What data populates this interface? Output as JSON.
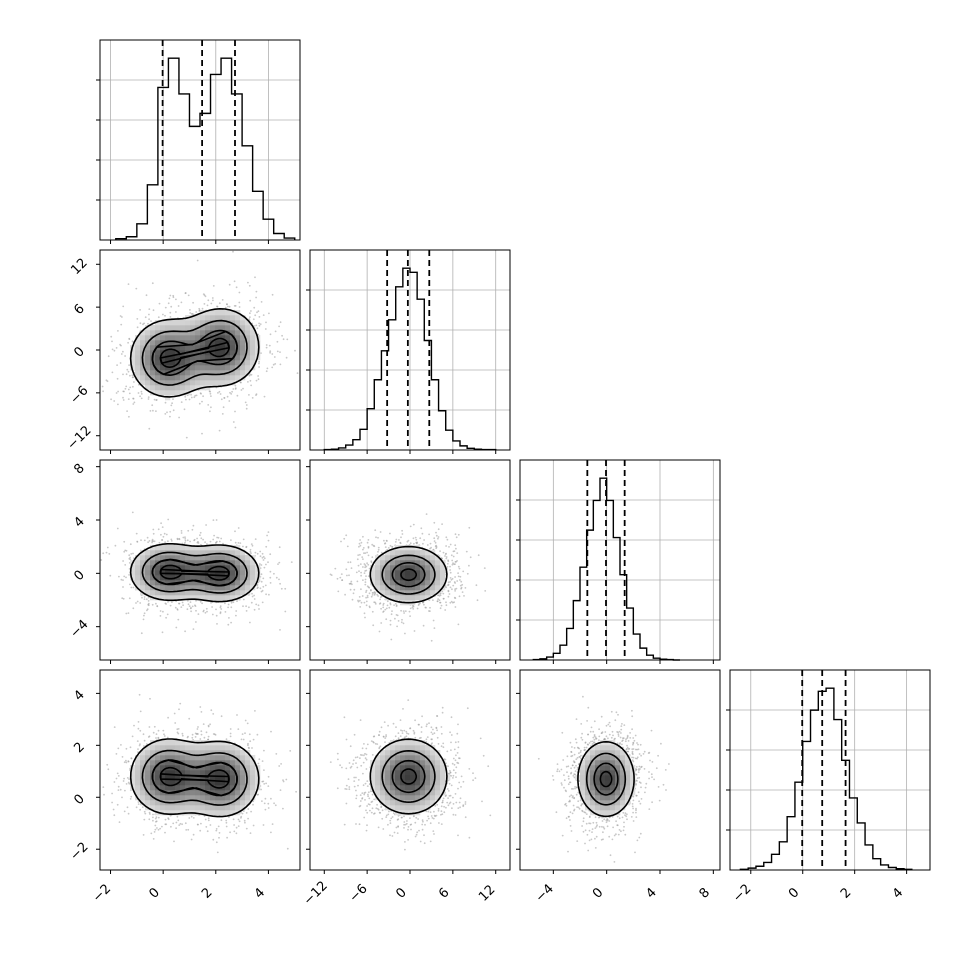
{
  "chart_data": {
    "type": "corner",
    "n_params": 4,
    "axes": {
      "0": {
        "range": [
          -2.4,
          5.2
        ],
        "ticks": [
          -2,
          0,
          2,
          4
        ],
        "tick_labels": [
          "−2",
          "0",
          "2",
          "4"
        ]
      },
      "1": {
        "range": [
          -14,
          14
        ],
        "ticks": [
          -12,
          -6,
          0,
          6,
          12
        ],
        "tick_labels": [
          "−12",
          "−6",
          "0",
          "6",
          "12"
        ]
      },
      "2": {
        "range": [
          -6.5,
          8.5
        ],
        "ticks": [
          -4,
          0,
          4,
          8
        ],
        "tick_labels": [
          "−4",
          "0",
          "4",
          "8"
        ]
      },
      "3": {
        "range": [
          -2.8,
          4.9
        ],
        "ticks": [
          -2,
          0,
          2,
          4
        ],
        "tick_labels": [
          "−2",
          "0",
          "2",
          "4"
        ]
      }
    },
    "histograms": [
      {
        "param": 0,
        "bin_edges": [
          -1.8,
          -1.4,
          -1.0,
          -0.6,
          -0.2,
          0.2,
          0.6,
          1.0,
          1.4,
          1.8,
          2.2,
          2.6,
          3.0,
          3.4,
          3.8,
          4.2,
          4.6,
          5.0
        ],
        "counts": [
          2,
          5,
          25,
          85,
          235,
          280,
          225,
          175,
          195,
          255,
          280,
          225,
          145,
          75,
          32,
          10,
          3
        ],
        "quantiles": [
          -0.02,
          1.48,
          2.73
        ]
      },
      {
        "param": 1,
        "bin_edges": [
          -12,
          -11,
          -10,
          -9,
          -8,
          -7,
          -6,
          -5,
          -4,
          -3,
          -2,
          -1,
          0,
          1,
          2,
          3,
          4,
          5,
          6,
          7,
          8,
          9,
          10,
          11,
          12
        ],
        "counts": [
          1,
          2,
          5,
          12,
          25,
          50,
          100,
          170,
          240,
          315,
          395,
          440,
          430,
          365,
          265,
          170,
          95,
          48,
          22,
          10,
          4,
          2,
          1,
          1
        ],
        "quantiles": [
          -3.2,
          -0.3,
          2.7
        ]
      },
      {
        "param": 2,
        "bin_edges": [
          -5.5,
          -5,
          -4.5,
          -4,
          -3.5,
          -3,
          -2.5,
          -2,
          -1.5,
          -1,
          -0.5,
          0,
          0.5,
          1,
          1.5,
          2,
          2.5,
          3,
          3.5,
          4,
          4.5,
          5,
          5.5
        ],
        "counts": [
          1,
          3,
          8,
          18,
          40,
          85,
          160,
          250,
          350,
          430,
          490,
          430,
          330,
          230,
          140,
          70,
          32,
          13,
          5,
          2,
          1,
          0
        ],
        "quantiles": [
          -1.45,
          -0.05,
          1.35
        ]
      },
      {
        "param": 3,
        "bin_edges": [
          -2.4,
          -2.1,
          -1.8,
          -1.5,
          -1.2,
          -0.9,
          -0.6,
          -0.3,
          0,
          0.3,
          0.6,
          0.9,
          1.2,
          1.5,
          1.8,
          2.1,
          2.4,
          2.7,
          3.0,
          3.3,
          3.6,
          3.9,
          4.2
        ],
        "counts": [
          1,
          3,
          6,
          12,
          25,
          45,
          85,
          140,
          205,
          255,
          285,
          290,
          240,
          175,
          115,
          75,
          40,
          18,
          8,
          4,
          2,
          1
        ],
        "quantiles": [
          -0.02,
          0.75,
          1.65
        ]
      }
    ],
    "scatter_panels": [
      {
        "x": 0,
        "y": 1,
        "peaks": [
          [
            0.2,
            -1.2
          ],
          [
            2.2,
            0.4
          ]
        ]
      },
      {
        "x": 0,
        "y": 2,
        "peaks": [
          [
            0.2,
            0.1
          ],
          [
            2.2,
            0.0
          ]
        ]
      },
      {
        "x": 1,
        "y": 2,
        "peaks": [
          [
            -0.2,
            -0.1
          ]
        ]
      },
      {
        "x": 0,
        "y": 3,
        "peaks": [
          [
            0.2,
            0.8
          ],
          [
            2.2,
            0.7
          ]
        ]
      },
      {
        "x": 1,
        "y": 3,
        "peaks": [
          [
            -0.2,
            0.8
          ]
        ]
      },
      {
        "x": 2,
        "y": 3,
        "peaks": [
          [
            -0.05,
            0.7
          ]
        ]
      }
    ],
    "grid": true,
    "quantile_line_style": "dashed"
  }
}
